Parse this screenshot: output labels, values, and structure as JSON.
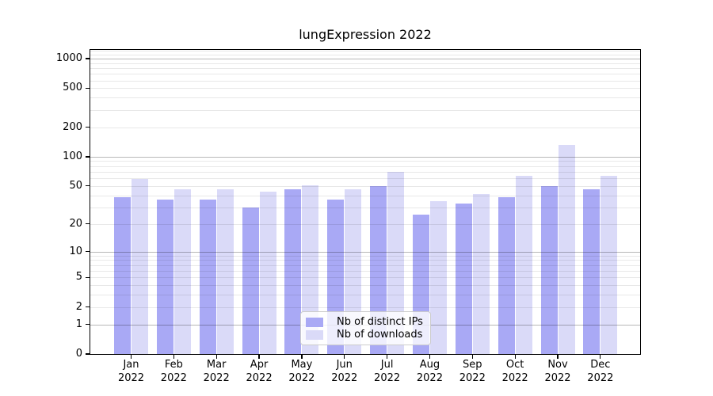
{
  "chart_data": {
    "type": "bar",
    "title": "lungExpression 2022",
    "categories": [
      "Jan",
      "Feb",
      "Mar",
      "Apr",
      "May",
      "Jun",
      "Jul",
      "Aug",
      "Sep",
      "Oct",
      "Nov",
      "Dec"
    ],
    "category_year": "2022",
    "series": [
      {
        "name": "Nb of distinct IPs",
        "color": "#a9a9f5",
        "values": [
          38,
          36,
          36,
          30,
          46,
          36,
          50,
          25,
          33,
          38,
          50,
          46
        ]
      },
      {
        "name": "Nb of downloads",
        "color": "#dadaf8",
        "values": [
          59,
          46,
          46,
          44,
          51,
          46,
          70,
          35,
          41,
          64,
          131,
          64
        ]
      }
    ],
    "y_axis": {
      "scale": "log1p",
      "tick_labels": [
        "1000",
        "500",
        "200",
        "100",
        "50",
        "20",
        "10",
        "5",
        "2",
        "1",
        "0"
      ],
      "tick_values": [
        1000,
        500,
        200,
        100,
        50,
        20,
        10,
        5,
        2,
        1,
        0
      ],
      "ylim": [
        0,
        1250
      ]
    },
    "grid": {
      "major_color": "rgba(0,0,0,0.28)",
      "minor_color": "rgba(0,0,0,0.09)"
    },
    "legend_position": "bottom-center"
  }
}
